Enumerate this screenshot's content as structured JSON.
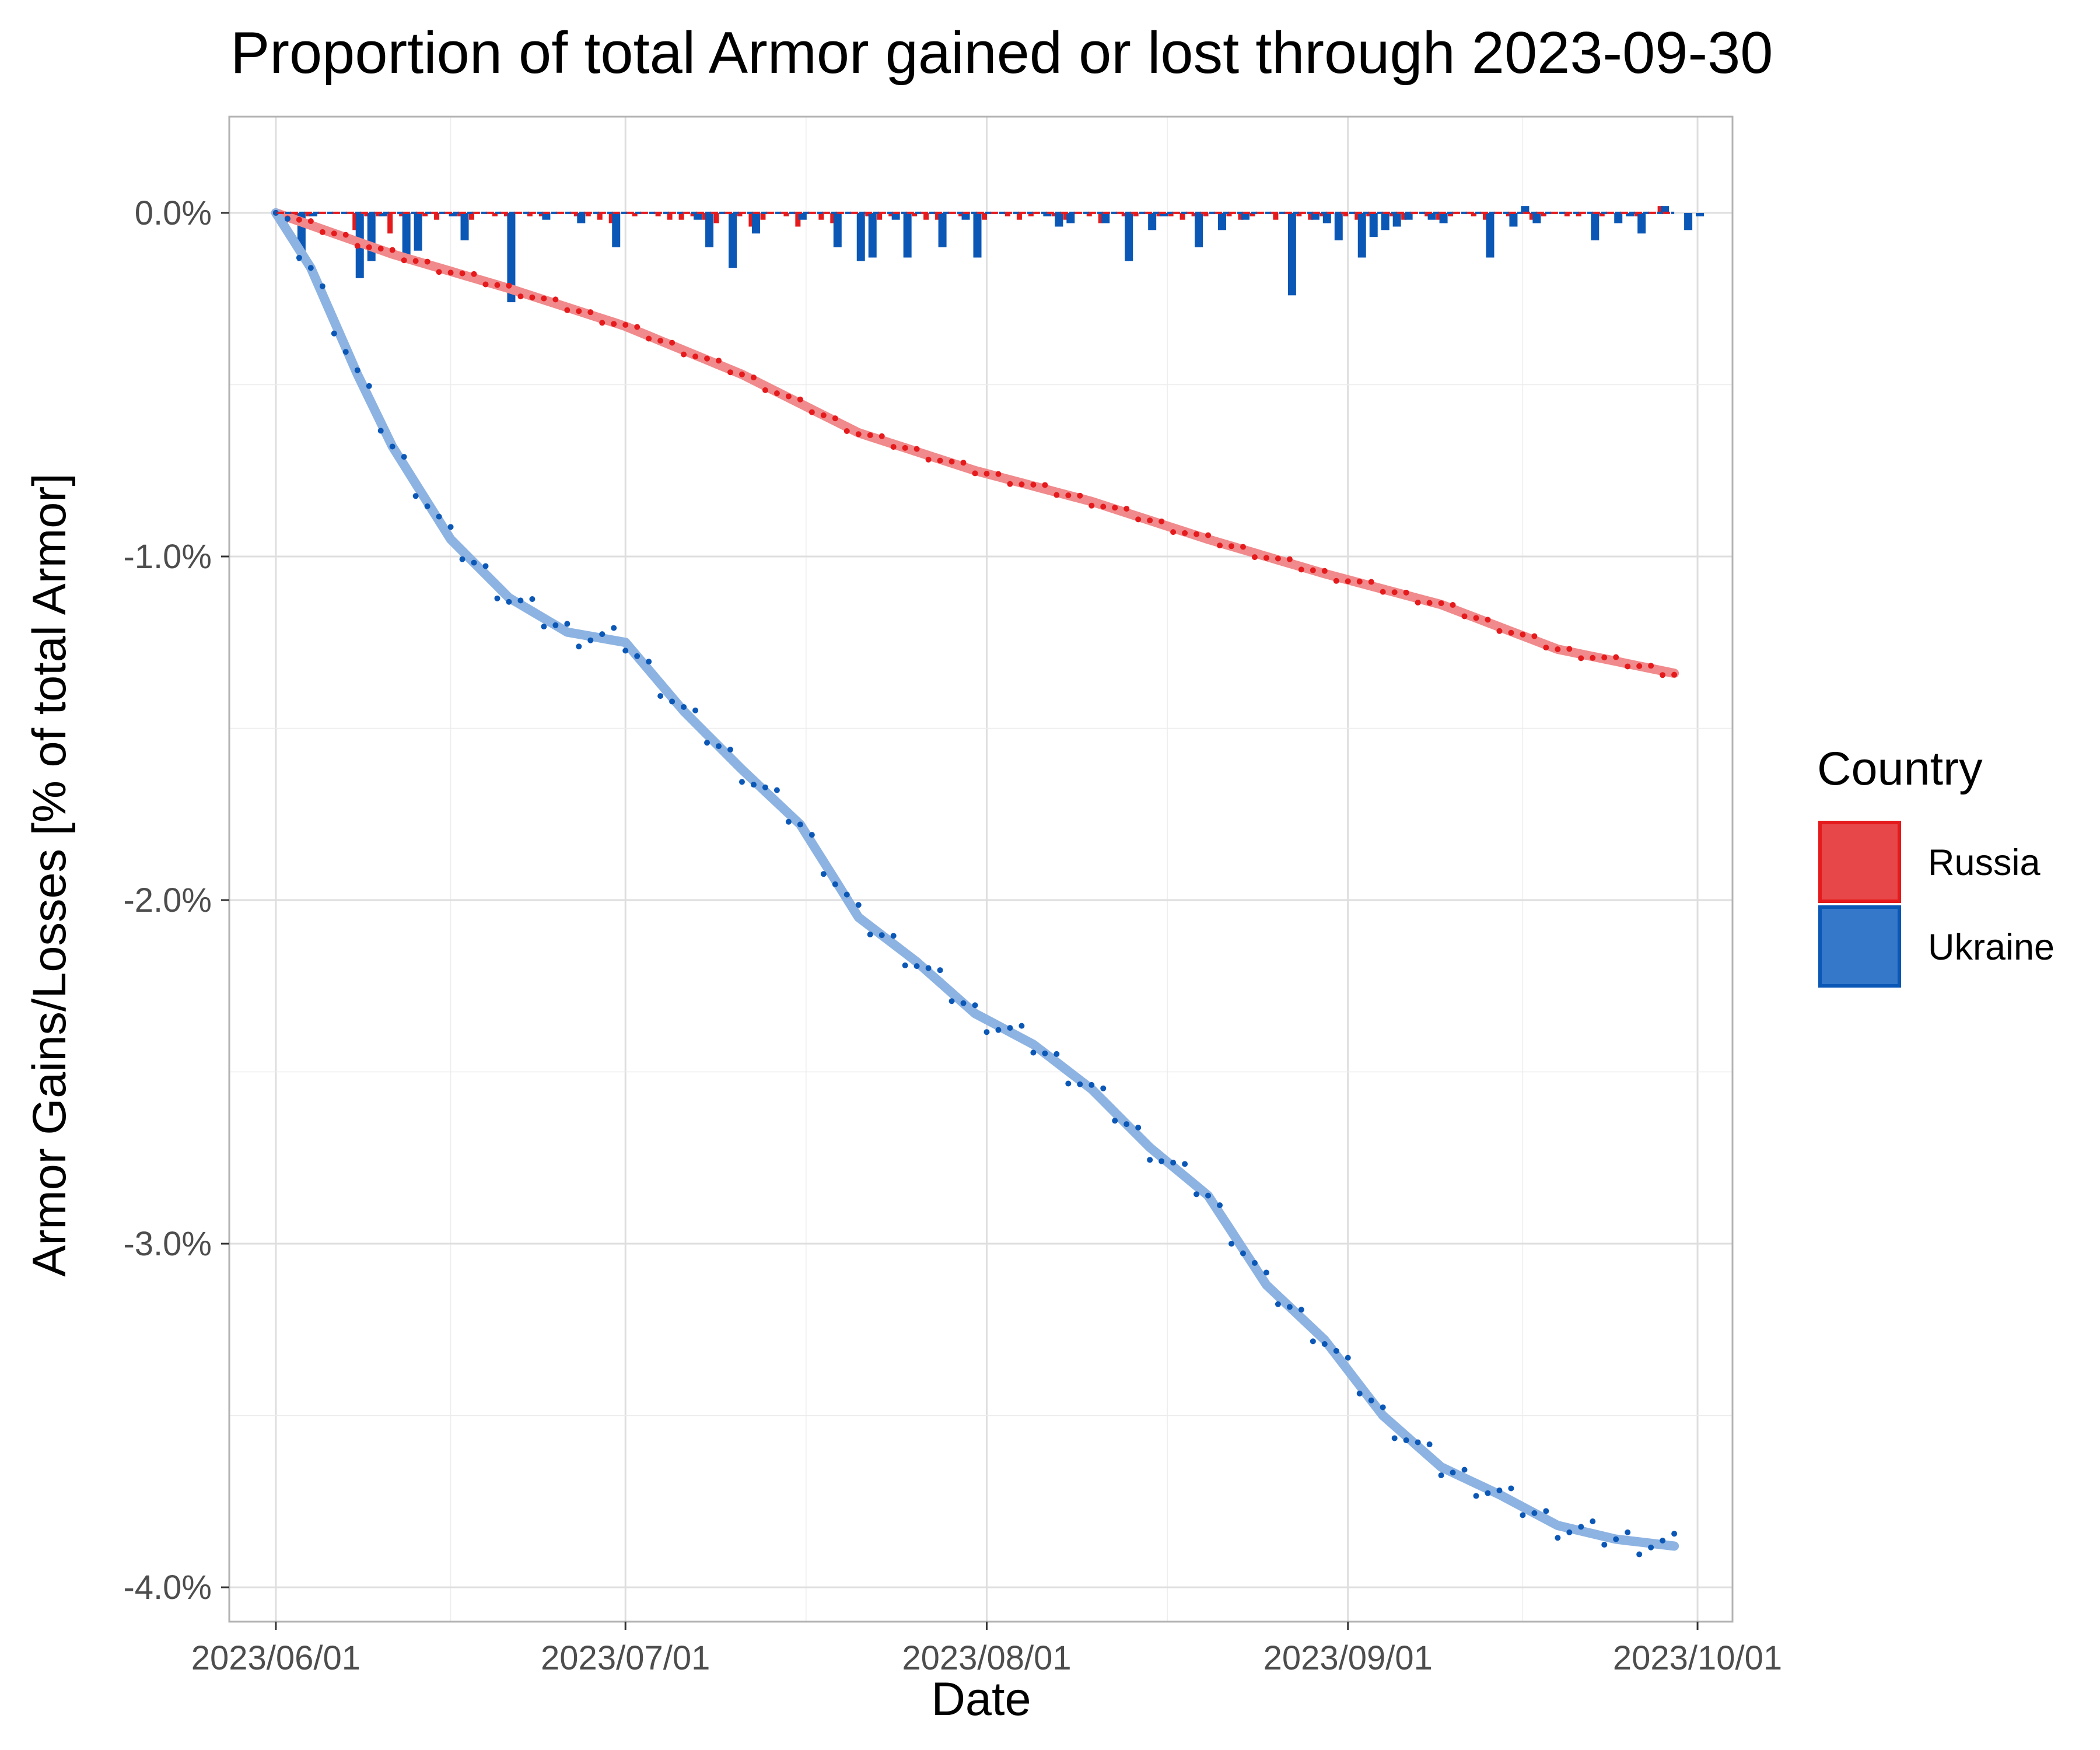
{
  "chart_data": {
    "type": "line",
    "title": "Proportion of total Armor gained or lost through 2023-09-30",
    "xlabel": "Date",
    "ylabel": "Armor Gains/Losses [% of total Armor]",
    "x_range": [
      "2023-05-28",
      "2023-10-04"
    ],
    "ylim": [
      -4.1,
      0.28
    ],
    "x_ticks": [
      "2023/06/01",
      "2023/07/01",
      "2023/08/01",
      "2023/09/01",
      "2023/10/01"
    ],
    "y_ticks": [
      0.0,
      -1.0,
      -2.0,
      -3.0,
      -4.0
    ],
    "y_tick_labels": [
      "0.0%",
      "-1.0%",
      "-2.0%",
      "-3.0%",
      "-4.0%"
    ],
    "grid": true,
    "legend": {
      "title": "Country",
      "position": "right",
      "entries": [
        "Russia",
        "Ukraine"
      ]
    },
    "colors": {
      "Russia": "#e41a1c",
      "Ukraine": "#0b57b6",
      "Russia_fill": "#e8474a",
      "Ukraine_fill": "#3578c9",
      "Russia_smooth": "#f08a8c",
      "Ukraine_smooth": "#8db3e2"
    },
    "series": [
      {
        "name": "Russia",
        "cumulative_key_days": [
          0,
          10,
          20,
          30,
          40,
          50,
          60,
          70,
          80,
          90,
          100,
          110,
          120
        ],
        "cumulative_key_values": [
          0.0,
          -0.12,
          -0.22,
          -0.33,
          -0.47,
          -0.64,
          -0.75,
          -0.84,
          -0.95,
          -1.05,
          -1.14,
          -1.27,
          -1.34
        ],
        "daily_changes": [
          0,
          -0.03,
          -0.03,
          -0.01,
          0,
          0,
          0,
          -0.05,
          -0.01,
          -0.01,
          -0.06,
          -0.01,
          0,
          -0.01,
          -0.02,
          0,
          -0.01,
          -0.02,
          0,
          -0.01,
          -0.01,
          0,
          -0.01,
          -0.01,
          0,
          0,
          -0.01,
          -0.01,
          -0.02,
          -0.03,
          0,
          -0.01,
          0,
          -0.01,
          -0.02,
          -0.02,
          -0.01,
          -0.02,
          -0.03,
          0,
          -0.01,
          -0.04,
          -0.02,
          0,
          -0.01,
          -0.04,
          0,
          -0.02,
          -0.03,
          0,
          0,
          -0.01,
          -0.02,
          -0.01,
          0,
          -0.01,
          -0.02,
          -0.02,
          0,
          -0.01,
          0,
          -0.02,
          0,
          -0.01,
          -0.02,
          -0.01,
          0,
          -0.01,
          -0.02,
          0,
          -0.01,
          -0.03,
          0,
          -0.01,
          -0.01,
          0,
          -0.01,
          -0.01,
          -0.02,
          -0.01,
          -0.01,
          0,
          -0.01,
          -0.02,
          -0.01,
          0,
          -0.02,
          0,
          -0.01,
          -0.02,
          -0.01,
          0,
          -0.01,
          -0.02,
          -0.01,
          0,
          -0.01,
          -0.02,
          0,
          -0.01,
          -0.02,
          -0.01,
          0,
          -0.01,
          -0.02,
          0,
          -0.01,
          0,
          -0.02,
          -0.01,
          0,
          -0.01,
          -0.01,
          0,
          -0.01,
          0,
          0,
          -0.01,
          0,
          0.02,
          0
        ]
      },
      {
        "name": "Ukraine",
        "cumulative_key_days": [
          0,
          3,
          7,
          10,
          15,
          20,
          25,
          30,
          35,
          40,
          45,
          50,
          55,
          60,
          65,
          70,
          75,
          80,
          85,
          90,
          95,
          100,
          105,
          110,
          115,
          120
        ],
        "cumulative_key_values": [
          0.0,
          -0.16,
          -0.47,
          -0.68,
          -0.95,
          -1.12,
          -1.22,
          -1.25,
          -1.45,
          -1.62,
          -1.78,
          -2.05,
          -2.18,
          -2.33,
          -2.42,
          -2.55,
          -2.72,
          -2.86,
          -3.12,
          -3.28,
          -3.5,
          -3.65,
          -3.73,
          -3.82,
          -3.86,
          -3.88
        ],
        "daily_changes": [
          0,
          -0.01,
          -0.14,
          -0.01,
          0,
          0,
          0,
          -0.19,
          -0.14,
          -0.01,
          0,
          -0.14,
          -0.11,
          0,
          0,
          -0.01,
          -0.08,
          0,
          0,
          0,
          -0.26,
          0,
          0,
          -0.02,
          0,
          0,
          -0.03,
          0,
          0,
          -0.1,
          0,
          0,
          0,
          0,
          0,
          0,
          -0.02,
          -0.1,
          0,
          -0.16,
          0,
          -0.06,
          0,
          0,
          0,
          -0.02,
          0,
          0,
          -0.1,
          0,
          -0.14,
          -0.13,
          0,
          -0.02,
          -0.13,
          0,
          0,
          -0.1,
          0,
          -0.02,
          -0.13,
          0,
          0,
          0,
          0,
          0,
          -0.01,
          -0.04,
          -0.03,
          0,
          0,
          -0.03,
          0,
          -0.14,
          0,
          -0.05,
          -0.01,
          0,
          0,
          -0.1,
          0,
          -0.05,
          0,
          -0.02,
          0,
          0,
          0,
          -0.24,
          0,
          -0.02,
          -0.03,
          -0.08,
          0,
          -0.13,
          -0.07,
          -0.05,
          -0.04,
          -0.02,
          0,
          -0.02,
          -0.03,
          0,
          0,
          0,
          -0.13,
          0,
          -0.04,
          0.02,
          -0.03,
          0,
          0,
          0,
          0,
          -0.08,
          0,
          -0.03,
          -0.01,
          -0.06,
          0,
          0.02,
          0,
          -0.05,
          -0.01
        ]
      }
    ]
  }
}
